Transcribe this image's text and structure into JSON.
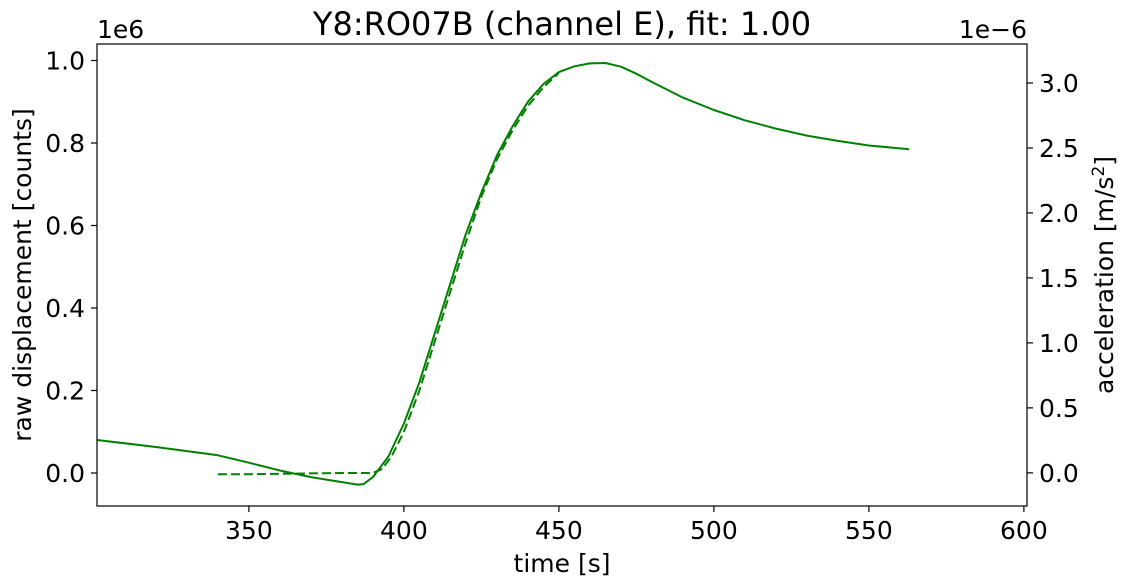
{
  "chart_data": {
    "type": "line",
    "title": "Y8:RO07B  (channel E), fit: 1.00",
    "xlabel": "time [s]",
    "ylabel_left": "raw displacement [counts]",
    "ylabel_right_prefix": "acceleration [m/s",
    "ylabel_right_sup": "2",
    "ylabel_right_suffix": "]",
    "offset_left": "1e6",
    "offset_right": "1e−6",
    "xlim": [
      301,
      601
    ],
    "ylim_left": [
      -0.08,
      1.04
    ],
    "ylim_right": [
      -0.255,
      3.3
    ],
    "x_ticks": [
      350,
      400,
      450,
      500,
      550,
      600
    ],
    "x_tick_labels": [
      "350",
      "400",
      "450",
      "500",
      "550",
      "600"
    ],
    "y_left_ticks": [
      0.0,
      0.2,
      0.4,
      0.6,
      0.8,
      1.0
    ],
    "y_left_tick_labels": [
      "0.0",
      "0.2",
      "0.4",
      "0.6",
      "0.8",
      "1.0"
    ],
    "y_right_ticks": [
      0.0,
      0.5,
      1.0,
      1.5,
      2.0,
      2.5,
      3.0
    ],
    "y_right_tick_labels": [
      "0.0",
      "0.5",
      "1.0",
      "1.5",
      "2.0",
      "2.5",
      "3.0"
    ],
    "grid": false,
    "color": "#008000",
    "series": [
      {
        "style": "solid",
        "axis": "left",
        "x": [
          301,
          320,
          340,
          350,
          360,
          370,
          380,
          385,
          387,
          390,
          395,
          400,
          405,
          410,
          415,
          420,
          425,
          430,
          435,
          440,
          445,
          450,
          455,
          460,
          465,
          470,
          475,
          480,
          490,
          500,
          510,
          520,
          530,
          540,
          550,
          563
        ],
        "y": [
          0.08,
          0.063,
          0.043,
          0.025,
          0.006,
          -0.01,
          -0.022,
          -0.028,
          -0.027,
          -0.01,
          0.04,
          0.12,
          0.22,
          0.34,
          0.46,
          0.58,
          0.68,
          0.77,
          0.84,
          0.9,
          0.943,
          0.972,
          0.986,
          0.993,
          0.994,
          0.985,
          0.968,
          0.948,
          0.91,
          0.88,
          0.855,
          0.835,
          0.818,
          0.805,
          0.794,
          0.785
        ]
      },
      {
        "style": "dashed",
        "axis": "left",
        "x": [
          340,
          350,
          360,
          370,
          380,
          390,
          393,
          396,
          400,
          405,
          410,
          415,
          420,
          425,
          430,
          435,
          440,
          445,
          450
        ],
        "y": [
          -0.003,
          -0.003,
          -0.002,
          -0.001,
          0.0,
          0.0,
          0.01,
          0.04,
          0.1,
          0.2,
          0.32,
          0.44,
          0.56,
          0.67,
          0.76,
          0.83,
          0.89,
          0.935,
          0.97
        ]
      }
    ]
  }
}
